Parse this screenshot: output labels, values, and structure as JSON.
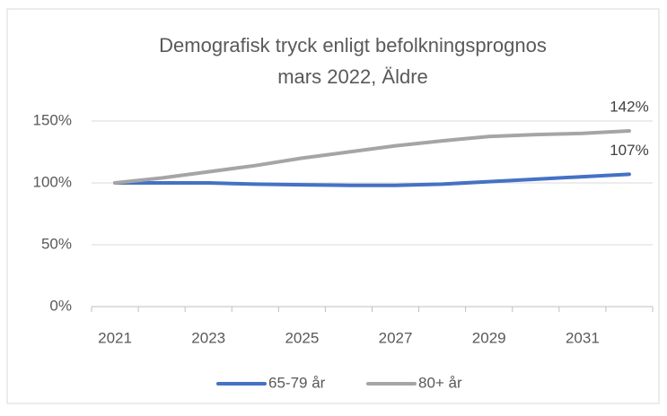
{
  "chart_data": {
    "type": "line",
    "title": "Demografisk tryck enligt befolkningsprognos",
    "subtitle": "mars 2022, Äldre",
    "categories": [
      "2021",
      null,
      "2023",
      null,
      "2025",
      null,
      "2027",
      null,
      "2029",
      null,
      "2031",
      null
    ],
    "series": [
      {
        "name": "65-79 år",
        "color": "#4472c4",
        "values": [
          100,
          100,
          100,
          99,
          98.5,
          98,
          98,
          99,
          101,
          103,
          105,
          107
        ],
        "value_labels": [
          null,
          null,
          null,
          null,
          null,
          null,
          null,
          null,
          null,
          null,
          null,
          "107%"
        ]
      },
      {
        "name": "80+ år",
        "color": "#a5a5a5",
        "values": [
          100,
          104,
          109,
          114,
          120,
          125,
          130,
          134,
          137.5,
          139,
          140,
          142
        ],
        "value_labels": [
          null,
          null,
          null,
          null,
          null,
          null,
          null,
          null,
          null,
          null,
          null,
          "142%"
        ]
      }
    ],
    "ylim": [
      0,
      150
    ],
    "yticks": [
      {
        "value": 0,
        "label": "0%"
      },
      {
        "value": 50,
        "label": "50%"
      },
      {
        "value": 100,
        "label": "100%"
      },
      {
        "value": 150,
        "label": "150%"
      }
    ],
    "grid": true,
    "legend": "bottom"
  }
}
